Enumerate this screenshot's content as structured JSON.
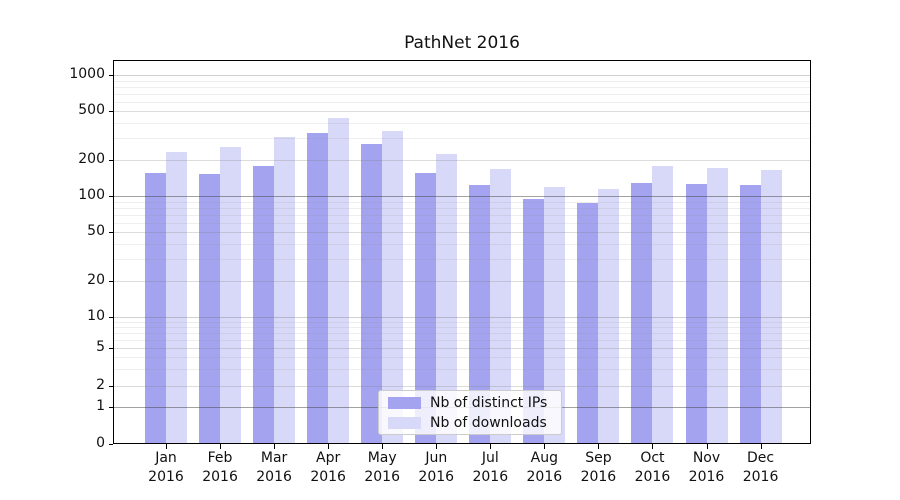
{
  "title": "PathNet 2016",
  "chart_data": {
    "type": "bar",
    "title": "PathNet 2016",
    "categories": [
      "Jan 2016",
      "Feb 2016",
      "Mar 2016",
      "Apr 2016",
      "May 2016",
      "Jun 2016",
      "Jul 2016",
      "Aug 2016",
      "Sep 2016",
      "Oct 2016",
      "Nov 2016",
      "Dec 2016"
    ],
    "series": [
      {
        "name": "Nb of distinct IPs",
        "color": "#a3a3f0",
        "values": [
          154,
          151,
          178,
          334,
          267,
          156,
          123,
          95,
          88,
          127,
          125,
          123
        ]
      },
      {
        "name": "Nb of downloads",
        "color": "#d8d8f8",
        "values": [
          230,
          253,
          307,
          443,
          344,
          221,
          166,
          118,
          114,
          177,
          171,
          165
        ]
      }
    ],
    "xlabel": "",
    "ylabel": "",
    "yscale": "symlog",
    "y_ticks": [
      0,
      1,
      2,
      5,
      10,
      20,
      50,
      100,
      200,
      500,
      1000
    ],
    "ylim": [
      0,
      1330
    ],
    "grid": "both",
    "legend_position": "lower center",
    "colors": {
      "bar_dark": "#a3a3f0",
      "bar_light": "#d8d8f8",
      "grid_major": "#aaaaaa",
      "grid_minor": "#e4e4e4",
      "axis": "#000000",
      "background": "#ffffff"
    }
  }
}
